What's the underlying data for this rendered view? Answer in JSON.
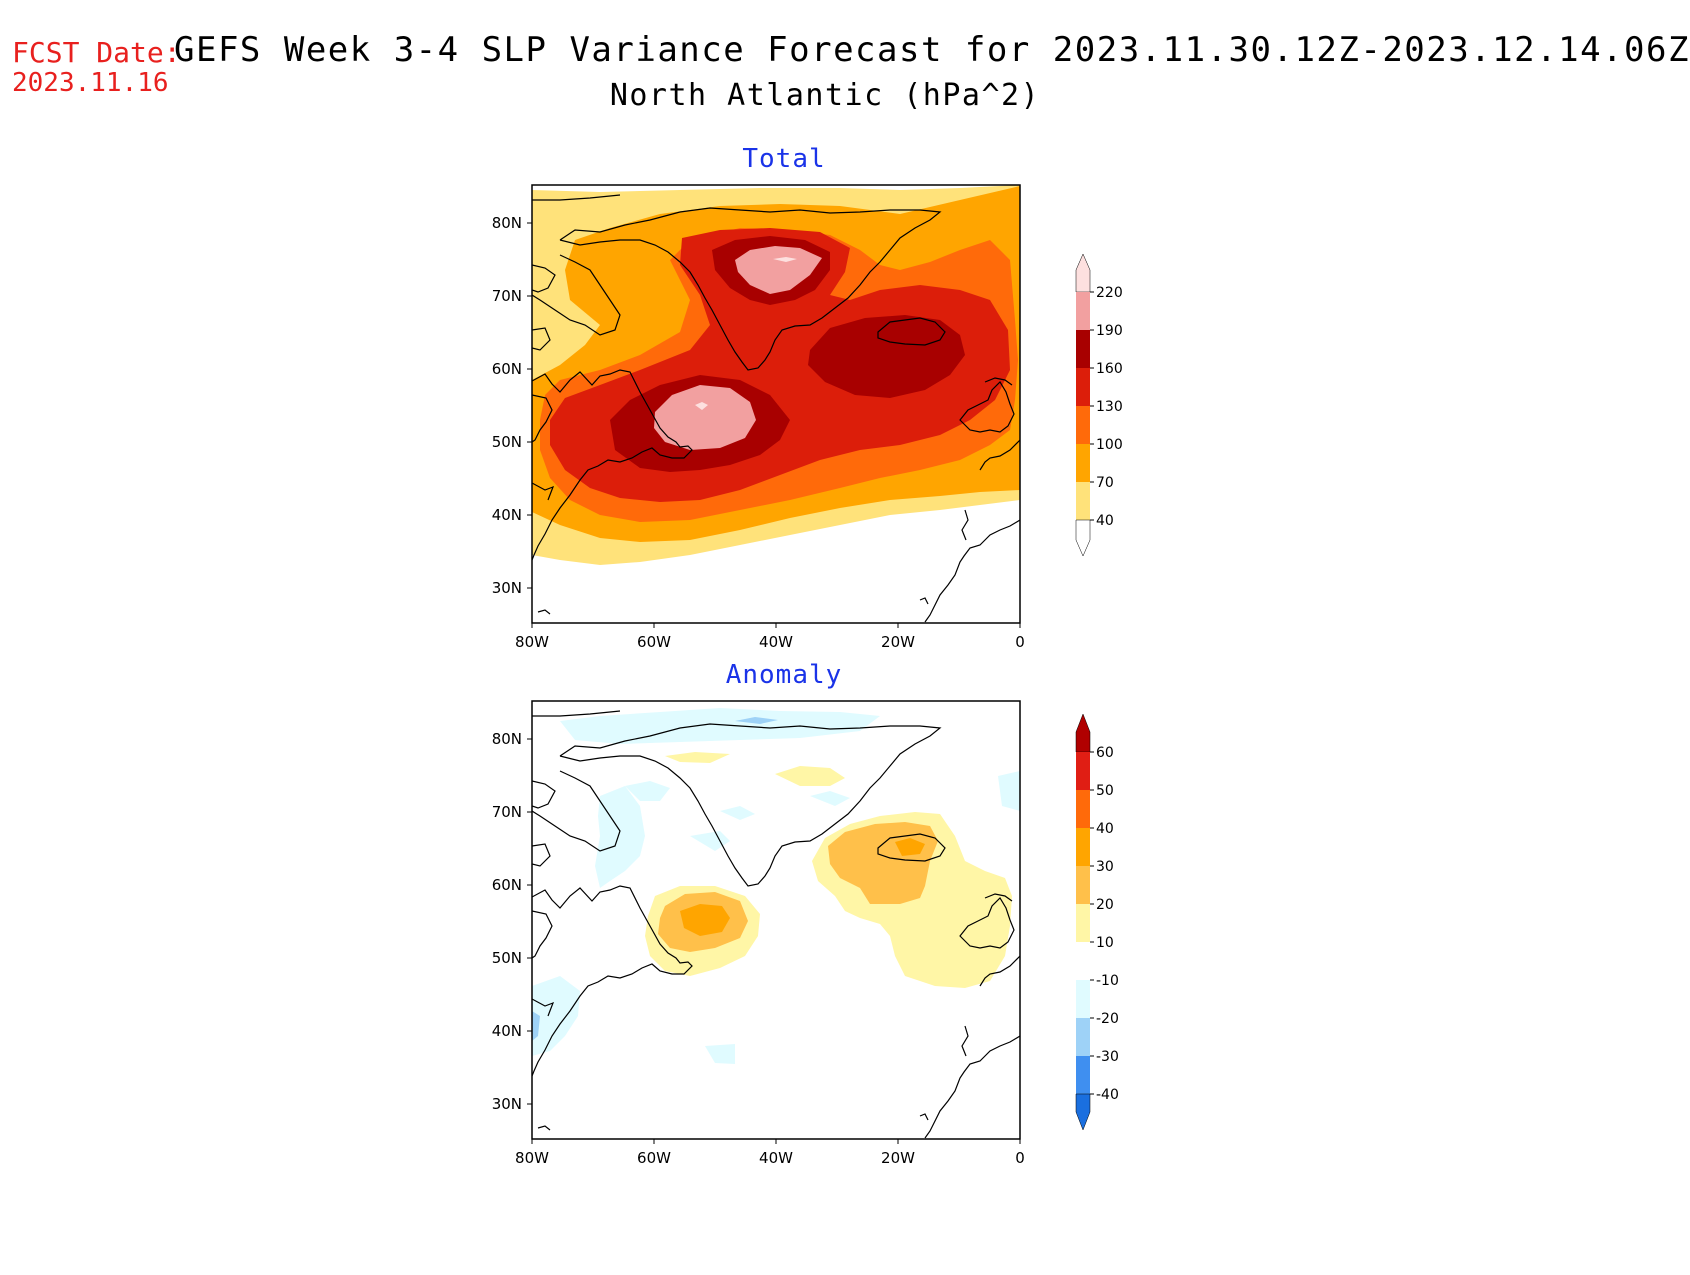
{
  "header": {
    "fcst_label": "FCST Date:",
    "fcst_date": "2023.11.16",
    "title": "GEFS Week 3-4 SLP Variance Forecast for 2023.11.30.12Z-2023.12.14.06Z",
    "subtitle": "North Atlantic (hPa^2)"
  },
  "map": {
    "lat_ticks": [
      "80N",
      "70N",
      "60N",
      "50N",
      "40N",
      "30N"
    ],
    "lon_ticks": [
      "80W",
      "60W",
      "40W",
      "20W",
      "0"
    ]
  },
  "panels": [
    {
      "title": "Total",
      "colorbar": {
        "labels": [
          "220",
          "190",
          "160",
          "130",
          "100",
          "70",
          "40"
        ],
        "colors": [
          "#fde0df",
          "#f2a0a0",
          "#a80000",
          "#dc1e0a",
          "#ff6a0a",
          "#ffa500",
          "#ffe27a"
        ]
      }
    },
    {
      "title": "Anomaly",
      "colorbar": {
        "labels": [
          "60",
          "50",
          "40",
          "30",
          "20",
          "10",
          "-10",
          "-20",
          "-30",
          "-40"
        ],
        "colors": [
          "#b00000",
          "#e01e14",
          "#ff6a0a",
          "#ffa500",
          "#ffc04a",
          "#fff6a6",
          "#ffffff",
          "#e0fbff",
          "#9ed2f7",
          "#3f8ff0",
          "#1a6fdf"
        ]
      }
    }
  ]
}
